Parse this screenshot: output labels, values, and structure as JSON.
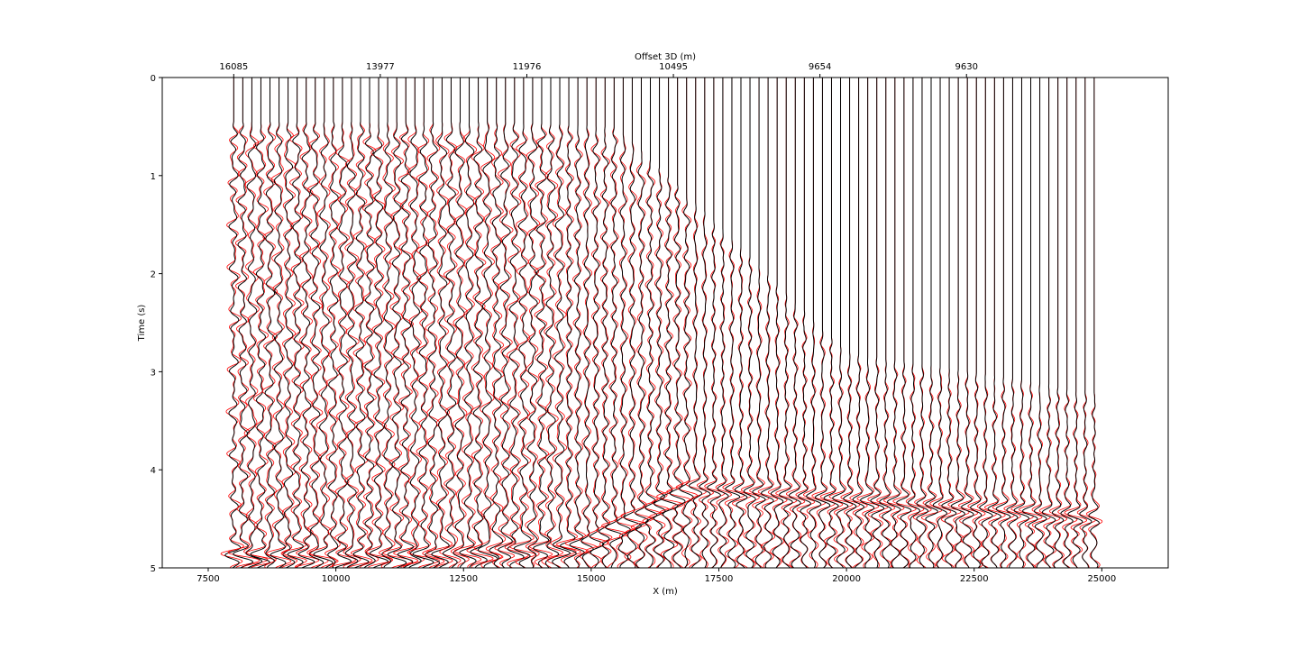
{
  "chart_data": {
    "type": "line",
    "title": "",
    "xlabel": "X (m)",
    "ylabel": "Time (s)",
    "top_xlabel": "Offset 3D (m)",
    "xlim": [
      6600,
      26300
    ],
    "ylim": [
      5,
      0
    ],
    "x_ticks": [
      7500,
      10000,
      12500,
      15000,
      17500,
      20000,
      22500,
      25000
    ],
    "x_tick_labels": [
      "7500",
      "10000",
      "12500",
      "15000",
      "17500",
      "20000",
      "22500",
      "25000"
    ],
    "y_ticks": [
      0,
      1,
      2,
      3,
      4,
      5
    ],
    "y_tick_labels": [
      "0",
      "1",
      "2",
      "3",
      "4",
      "5"
    ],
    "top_ticks": [
      8000,
      10870,
      13740,
      16610,
      19480,
      22350
    ],
    "top_tick_labels": [
      "16085",
      "13977",
      "11976",
      "10495",
      "9654",
      "9630"
    ],
    "grid": false,
    "legend": "none",
    "series": [
      {
        "color": "#000000",
        "style": "solid"
      },
      {
        "color": "#ff0000",
        "style": "solid"
      }
    ],
    "traces": {
      "x_start": 8000,
      "x_end": 24850,
      "count": 96,
      "time_range": [
        0,
        5
      ],
      "first_arrival_time_at_x": [
        [
          8000,
          0.45
        ],
        [
          13000,
          0.45
        ],
        [
          15500,
          0.5
        ],
        [
          17500,
          1.5
        ],
        [
          20000,
          2.8
        ],
        [
          24850,
          3.2
        ]
      ],
      "strong_event_time_at_x": [
        [
          12000,
          4.9
        ],
        [
          14800,
          4.8
        ],
        [
          17000,
          4.2
        ],
        [
          19000,
          4.3
        ],
        [
          24850,
          4.5
        ]
      ]
    }
  }
}
